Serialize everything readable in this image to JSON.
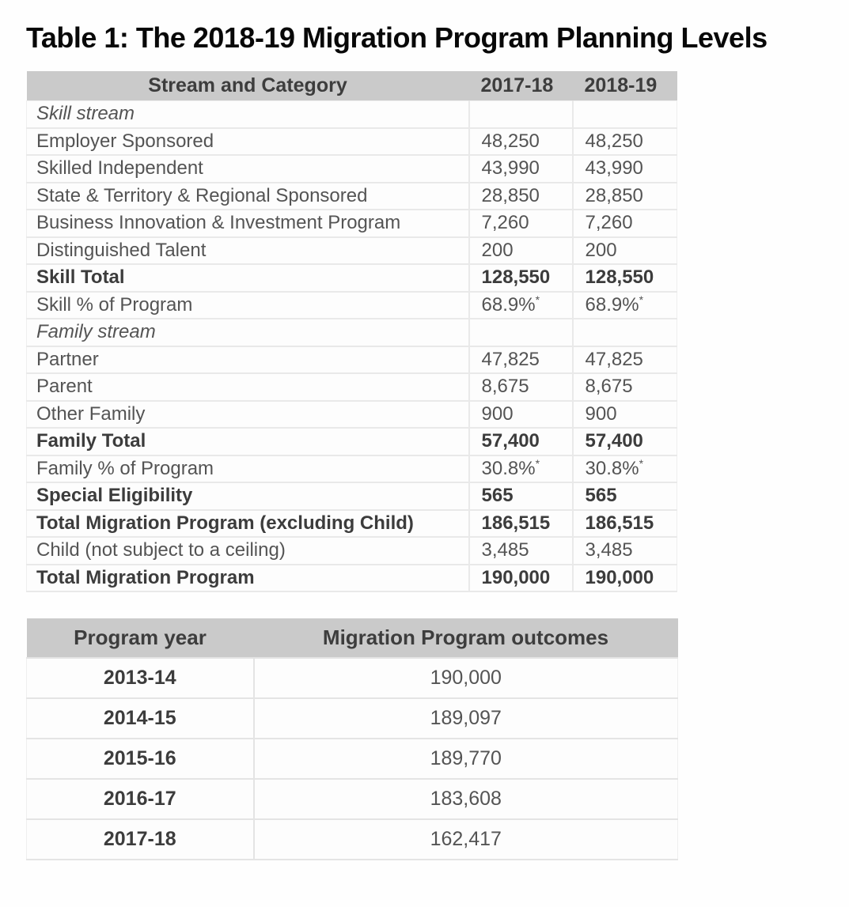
{
  "title": "Table 1: The 2018-19 Migration Program Planning Levels",
  "colors": {
    "header_bg": "#cacaca",
    "header_text": "#3d3d3d",
    "body_text": "#545454",
    "bold_text": "#3c3c3c",
    "title_text": "#080808",
    "row_border": "#e9e9e9",
    "page_bg": "#fefefe"
  },
  "planning_table": {
    "headers": [
      "Stream and Category",
      "2017-18",
      "2018-19"
    ],
    "rows": [
      {
        "label": "Skill stream",
        "y2017": "",
        "y2018": "",
        "style": "italic"
      },
      {
        "label": "Employer Sponsored",
        "y2017": "48,250",
        "y2018": "48,250",
        "style": "normal"
      },
      {
        "label": "Skilled Independent",
        "y2017": "43,990",
        "y2018": "43,990",
        "style": "normal"
      },
      {
        "label": "State & Territory & Regional Sponsored",
        "y2017": "28,850",
        "y2018": "28,850",
        "style": "normal"
      },
      {
        "label": "Business Innovation & Investment Program",
        "y2017": "7,260",
        "y2018": "7,260",
        "style": "normal"
      },
      {
        "label": "Distinguished Talent",
        "y2017": "200",
        "y2018": "200",
        "style": "normal"
      },
      {
        "label": "Skill Total",
        "y2017": "128,550",
        "y2018": "128,550",
        "style": "bold"
      },
      {
        "label": "Skill % of Program",
        "y2017": "68.9%*",
        "y2018": "68.9%*",
        "style": "normal"
      },
      {
        "label": "Family stream",
        "y2017": "",
        "y2018": "",
        "style": "italic"
      },
      {
        "label": "Partner",
        "y2017": "47,825",
        "y2018": "47,825",
        "style": "normal"
      },
      {
        "label": "Parent",
        "y2017": "8,675",
        "y2018": "8,675",
        "style": "normal"
      },
      {
        "label": "Other Family",
        "y2017": "900",
        "y2018": "900",
        "style": "normal"
      },
      {
        "label": "Family Total",
        "y2017": "57,400",
        "y2018": "57,400",
        "style": "bold"
      },
      {
        "label": "Family % of Program",
        "y2017": "30.8%*",
        "y2018": "30.8%*",
        "style": "normal"
      },
      {
        "label": "Special Eligibility",
        "y2017": "565",
        "y2018": "565",
        "style": "bold"
      },
      {
        "label": "Total Migration Program (excluding Child)",
        "y2017": "186,515",
        "y2018": "186,515",
        "style": "bold"
      },
      {
        "label": "Child (not subject to a ceiling)",
        "y2017": "3,485",
        "y2018": "3,485",
        "style": "normal"
      },
      {
        "label": "Total Migration Program",
        "y2017": "190,000",
        "y2018": "190,000",
        "style": "bold"
      }
    ]
  },
  "outcomes_table": {
    "headers": [
      "Program year",
      "Migration Program outcomes"
    ],
    "rows": [
      {
        "year": "2013-14",
        "outcome": "190,000"
      },
      {
        "year": "2014-15",
        "outcome": "189,097"
      },
      {
        "year": "2015-16",
        "outcome": "189,770"
      },
      {
        "year": "2016-17",
        "outcome": "183,608"
      },
      {
        "year": "2017-18",
        "outcome": "162,417"
      }
    ]
  }
}
